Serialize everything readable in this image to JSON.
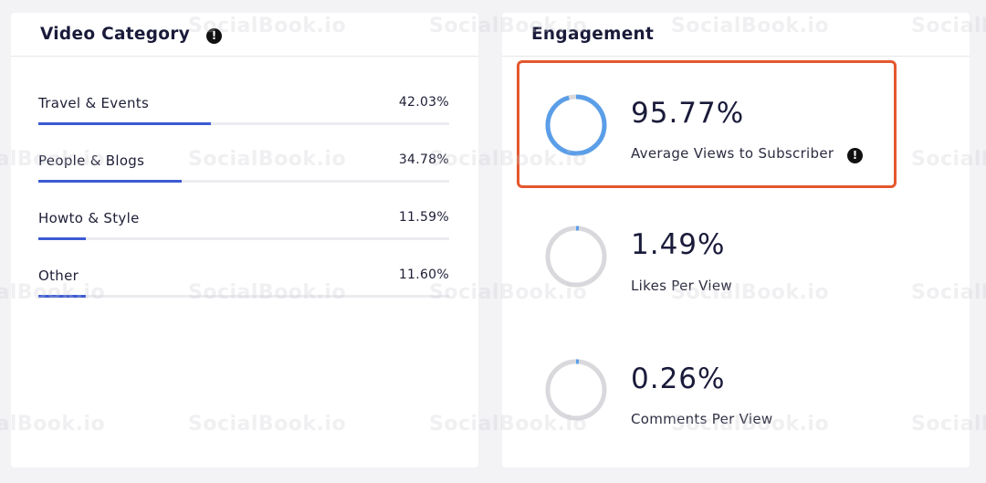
{
  "category_card": {
    "title": "Video Category",
    "items": [
      {
        "name": "Travel & Events",
        "percent": "42.03%",
        "fill": 0.42
      },
      {
        "name": "People & Blogs",
        "percent": "34.78%",
        "fill": 0.3478
      },
      {
        "name": "Howto & Style",
        "percent": "11.59%",
        "fill": 0.1159
      },
      {
        "name": "Other",
        "percent": "11.60%",
        "fill": 0.116
      }
    ]
  },
  "engagement_card": {
    "title": "Engagement",
    "metrics": [
      {
        "value": "95.77%",
        "label": "Average Views to Subscriber",
        "fraction": 0.9577,
        "ring_color": "#5b9ee8"
      },
      {
        "value": "1.49%",
        "label": "Likes Per View",
        "fraction": 0.0149,
        "ring_color": "#5b9ee8"
      },
      {
        "value": "0.26%",
        "label": "Comments Per View",
        "fraction": 0.0026,
        "ring_color": "#5b9ee8"
      }
    ]
  },
  "colors": {
    "bar_fill": "#3c5ad3",
    "ring_track": "#d9d9dd",
    "highlight": "#e4572e"
  },
  "watermark": "SocialBook.io"
}
